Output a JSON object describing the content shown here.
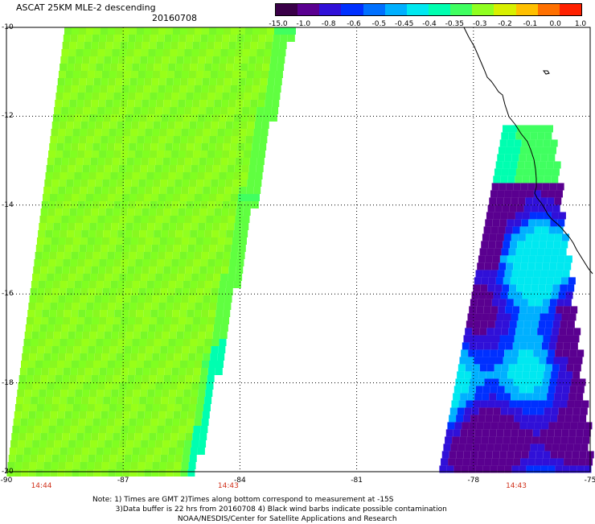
{
  "header": {
    "title": "ASCAT 25KM MLE-2 descending",
    "date": "20160708"
  },
  "colorbar": {
    "colors": [
      "#3a0048",
      "#5a0090",
      "#3010d8",
      "#0030ff",
      "#0070ff",
      "#00b0ff",
      "#00e8f0",
      "#00ffb0",
      "#40ff60",
      "#90ff20",
      "#d8f000",
      "#ffc000",
      "#ff7000",
      "#ff2000"
    ],
    "labels": [
      "-15.0",
      "-1.0",
      "-0.8",
      "-0.6",
      "-0.5",
      "-0.45",
      "-0.4",
      "-0.35",
      "-0.3",
      "-0.2",
      "-0.1",
      "0.0",
      "1.0"
    ]
  },
  "map": {
    "latitudes": [
      "-10",
      "-12",
      "-14",
      "-16",
      "-18",
      "-20"
    ],
    "longitudes": [
      "-90",
      "-87",
      "-84",
      "-81",
      "-78",
      "-75"
    ],
    "times": [
      {
        "label": "14:44",
        "lon": -89.1
      },
      {
        "label": "14:43",
        "lon": -84.3
      },
      {
        "label": "14:43",
        "lon": -76.9
      }
    ],
    "swath_west": {
      "lons": [
        -88.4,
        -84.3,
        -85.5
      ],
      "lat_top": -10.0,
      "lat_bottom": -20.0,
      "value_range": "-0.35 to -0.3"
    },
    "swath_east": {
      "lat_top": -12.2,
      "lat_bottom": -20.0,
      "value_range": "-15.0 to -0.3"
    }
  },
  "footer": {
    "note_line1": "Note: 1) Times are GMT 2)Times along bottom correspond to measurement at -15S",
    "note_line2": "3)Data buffer is 22 hrs from 20160708 4) Black wind barbs indicate possible contamination",
    "note_line3": "NOAA/NESDIS/Center for Satellite Applications and Research"
  }
}
